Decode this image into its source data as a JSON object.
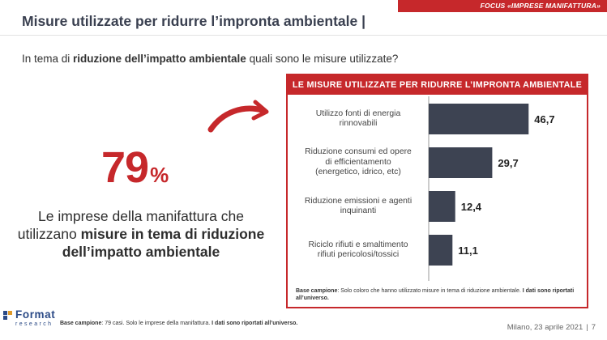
{
  "header": {
    "focus_tag": "FOCUS «IMPRESE MANIFATTURA»",
    "title": "Misure utilizzate per ridurre l’impronta ambientale  |"
  },
  "question": {
    "pre": "In tema di ",
    "bold": "riduzione dell’impatto ambientale",
    "post": " quali sono le misure utilizzate?"
  },
  "stat": {
    "value": "79",
    "unit": "%",
    "desc_pre": "Le imprese della manifattura che utilizzano ",
    "desc_bold": "misure in tema di riduzione dell’impatto ambientale"
  },
  "panel": {
    "header": "LE MISURE UTILIZZATE PER RIDURRE L’IMPRONTA AMBIENTALE",
    "note_label": "Base campione",
    "note_text": ": Solo coloro che hanno utilizzato misure in tema di riduzione ambientale. ",
    "note_bold": "I dati sono riportati all’universo."
  },
  "chart_data": {
    "type": "bar",
    "orientation": "horizontal",
    "categories": [
      "Utilizzo fonti di energia rinnovabili",
      "Riduzione consumi ed opere di efficientamento (energetico, idrico, etc)",
      "Riduzione emissioni e agenti inquinanti",
      "Riciclo rifiuti e smaltimento rifiuti pericolosi/tossici"
    ],
    "category_lines": [
      [
        "Utilizzo fonti di energia",
        "rinnovabili"
      ],
      [
        "Riduzione consumi ed opere",
        "di efficientamento",
        "(energetico, idrico, etc)"
      ],
      [
        "Riduzione emissioni e agenti",
        "inquinanti"
      ],
      [
        "Riciclo rifiuti e smaltimento",
        "rifiuti pericolosi/tossici"
      ]
    ],
    "values": [
      46.7,
      29.7,
      12.4,
      11.1
    ],
    "value_labels": [
      "46,7",
      "29,7",
      "12,4",
      "11,1"
    ],
    "bar_color": "#3d4352",
    "xlim": [
      0,
      50
    ]
  },
  "footer": {
    "base_label": "Base campione",
    "base_text": ": 79 casi. Solo le imprese della manifattura. ",
    "base_bold": "I dati sono riportati all’universo.",
    "logo_word": "Format",
    "logo_sub": "research",
    "location_date": "Milano, 23 aprile 2021",
    "separator": "|",
    "page_number": "7"
  },
  "colors": {
    "accent": "#c6282b",
    "bar": "#3d4352",
    "logo": "#2b4a86"
  }
}
